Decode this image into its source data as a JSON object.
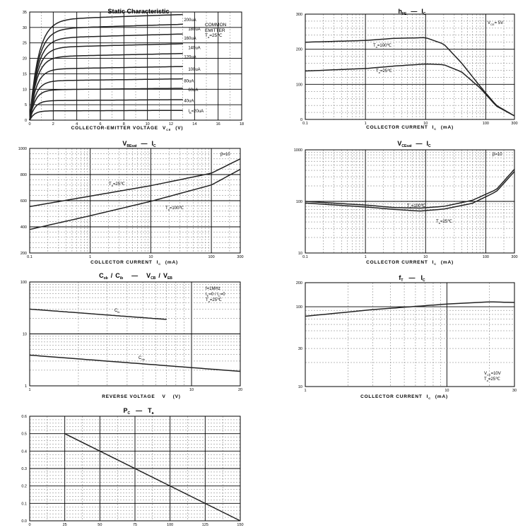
{
  "chart_data": [
    {
      "id": "c1",
      "type": "line",
      "title": "Static Characteristic",
      "xlabel": "COLLECTOR-EMITTER VOLTAGE",
      "xlabel_sym": "V",
      "xlabel_sub": "CE",
      "xlabel_unit": "(V)",
      "xlim": [
        0,
        18
      ],
      "ylim": [
        0,
        35
      ],
      "xticks": [
        "0",
        "2",
        "4",
        "6",
        "8",
        "10",
        "12",
        "14",
        "16",
        "18"
      ],
      "yticks": [
        "0",
        "5",
        "10",
        "15",
        "20",
        "25",
        "30",
        "35"
      ],
      "annotations": [
        "COMMON",
        "EMITTER",
        "T",
        "a",
        "=25℃"
      ],
      "series": [
        {
          "name": "200uA",
          "sat": 32.5
        },
        {
          "name": "180uA",
          "sat": 29.5
        },
        {
          "name": "160uA",
          "sat": 26.5
        },
        {
          "name": "140uA",
          "sat": 23.5
        },
        {
          "name": "120uA",
          "sat": 20.5
        },
        {
          "name": "100uA",
          "sat": 16.5
        },
        {
          "name": "80uA",
          "sat": 12.7
        },
        {
          "name": "60uA",
          "sat": 9.8
        },
        {
          "name": "40uA",
          "sat": 6.3
        },
        {
          "name": "I",
          "name_sub": "B",
          "name_val": "=20uA",
          "sat": 3.0
        }
      ]
    },
    {
      "id": "c2",
      "type": "line",
      "title_parts": [
        "h",
        "FE",
        "—",
        "I",
        "C"
      ],
      "xlabel": "COLLECTOR CURRENT",
      "xlabel_sym": "I",
      "xlabel_sub": "C",
      "xlabel_unit": "(mA)",
      "xscale": "log",
      "xlim": [
        0.1,
        300
      ],
      "ylim": [
        0,
        300
      ],
      "xticks": [
        "0.1",
        "1",
        "10",
        "100",
        "300"
      ],
      "yticks": [
        "0",
        "100",
        "200",
        "300"
      ],
      "annotations": [
        "V",
        "CE",
        "= 5V"
      ],
      "series": [
        {
          "name": "T",
          "name_sub": "a",
          "name_val": "=100℃",
          "x": [
            0.1,
            1,
            3,
            10,
            20,
            40,
            80,
            150,
            300
          ],
          "y": [
            220,
            225,
            231,
            233,
            215,
            160,
            95,
            40,
            10
          ]
        },
        {
          "name": "T",
          "name_sub": "a",
          "name_val": "=25℃",
          "x": [
            0.1,
            1,
            3,
            10,
            20,
            40,
            80,
            150,
            300
          ],
          "y": [
            138,
            145,
            152,
            158,
            156,
            135,
            90,
            38,
            10
          ]
        }
      ]
    },
    {
      "id": "c3",
      "type": "line",
      "title_parts": [
        "V",
        "BEsat",
        "—",
        "I",
        "C"
      ],
      "xlabel": "COLLECTOR CURRENT",
      "xlabel_sym": "I",
      "xlabel_sub": "C",
      "xlabel_unit": "(mA)",
      "xscale": "log",
      "xlim": [
        0.1,
        300
      ],
      "ylim": [
        200,
        1000
      ],
      "xticks": [
        "0.1",
        "1",
        "10",
        "100",
        "300"
      ],
      "yticks": [
        "200",
        "400",
        "600",
        "800",
        "1000"
      ],
      "annotations": [
        "β=10"
      ],
      "series": [
        {
          "name": "T",
          "name_sub": "a",
          "name_val": "=25℃",
          "x": [
            0.1,
            1,
            10,
            100,
            300
          ],
          "y": [
            555,
            635,
            715,
            810,
            920
          ]
        },
        {
          "name": "T",
          "name_sub": "a",
          "name_val": "=100℃",
          "x": [
            0.1,
            1,
            10,
            100,
            300
          ],
          "y": [
            380,
            485,
            595,
            720,
            840
          ]
        }
      ]
    },
    {
      "id": "c4",
      "type": "line",
      "title_parts": [
        "V",
        "CEsat",
        "—",
        "I",
        "C"
      ],
      "xlabel": "COLLECTOR CURRENT",
      "xlabel_sym": "I",
      "xlabel_sub": "C",
      "xlabel_unit": "(mA)",
      "xscale": "log",
      "yscale": "log",
      "xlim": [
        0.1,
        300
      ],
      "ylim": [
        10,
        1000
      ],
      "xticks": [
        "0.1",
        "1",
        "10",
        "100",
        "300"
      ],
      "yticks": [
        "10",
        "100",
        "1000"
      ],
      "annotations": [
        "β=10"
      ],
      "series": [
        {
          "name": "T",
          "name_sub": "a",
          "name_val": "=100℃",
          "x": [
            0.1,
            1,
            3,
            8,
            20,
            60,
            150,
            300
          ],
          "y": [
            100,
            85,
            76,
            74,
            80,
            105,
            170,
            420
          ]
        },
        {
          "name": "T",
          "name_sub": "a",
          "name_val": "=25℃",
          "x": [
            0.1,
            1,
            3,
            8,
            20,
            60,
            150,
            300
          ],
          "y": [
            93,
            78,
            70,
            65,
            71,
            92,
            155,
            380
          ]
        }
      ]
    },
    {
      "id": "c5",
      "type": "line",
      "title_parts": [
        "C",
        "ob",
        "/",
        "C",
        "ib",
        "—",
        "V",
        "CB",
        "/",
        "V",
        "EB"
      ],
      "xlabel": "REVERSE VOLTAGE",
      "xlabel_sym": "V",
      "xlabel_unit": "(V)",
      "xscale": "log",
      "yscale": "log",
      "xlim": [
        1,
        20
      ],
      "ylim": [
        1,
        100
      ],
      "xticks": [
        "1",
        "10",
        "20"
      ],
      "yticks": [
        "1",
        "10",
        "100"
      ],
      "annotations": [
        "f=1MHz",
        "I",
        "E",
        "=0 / ",
        "I",
        "C",
        "=0",
        "T",
        "a",
        "=25℃"
      ],
      "series": [
        {
          "name": "C",
          "name_sub": "ib",
          "x": [
            1,
            7
          ],
          "y": [
            30,
            19
          ]
        },
        {
          "name": "C",
          "name_sub": "ob",
          "x": [
            1,
            20
          ],
          "y": [
            3.9,
            1.9
          ]
        }
      ]
    },
    {
      "id": "c6",
      "type": "line",
      "title_parts": [
        "f",
        "T",
        "—",
        "I",
        "C"
      ],
      "xlabel": "COLLECTOR CURRENT",
      "xlabel_sym": "I",
      "xlabel_sub": "C",
      "xlabel_unit": "(mA)",
      "xscale": "log",
      "yscale": "log",
      "xlim": [
        1,
        30
      ],
      "ylim": [
        10,
        200
      ],
      "xticks": [
        "1",
        "10",
        "30"
      ],
      "yticks": [
        "10",
        "30",
        "100",
        "200"
      ],
      "annotations": [
        "V",
        "CE",
        "=10V",
        "T",
        "a",
        "=25℃"
      ],
      "series": [
        {
          "name": "f_T",
          "x": [
            1,
            3,
            10,
            20,
            30
          ],
          "y": [
            76,
            92,
            108,
            115,
            113
          ]
        }
      ]
    },
    {
      "id": "c7",
      "type": "line",
      "title_parts": [
        "P",
        "C",
        "—",
        "T",
        "a"
      ],
      "xlim": [
        0,
        150
      ],
      "ylim": [
        0,
        0.6
      ],
      "xticks": [
        "0",
        "25",
        "50",
        "75",
        "100",
        "125",
        "150"
      ],
      "yticks": [
        "0.0",
        "0.1",
        "0.2",
        "0.3",
        "0.4",
        "0.5",
        "0.6"
      ],
      "series": [
        {
          "name": "P_C",
          "x": [
            0,
            25,
            150
          ],
          "y": [
            0.5,
            0.5,
            0
          ]
        }
      ]
    }
  ]
}
